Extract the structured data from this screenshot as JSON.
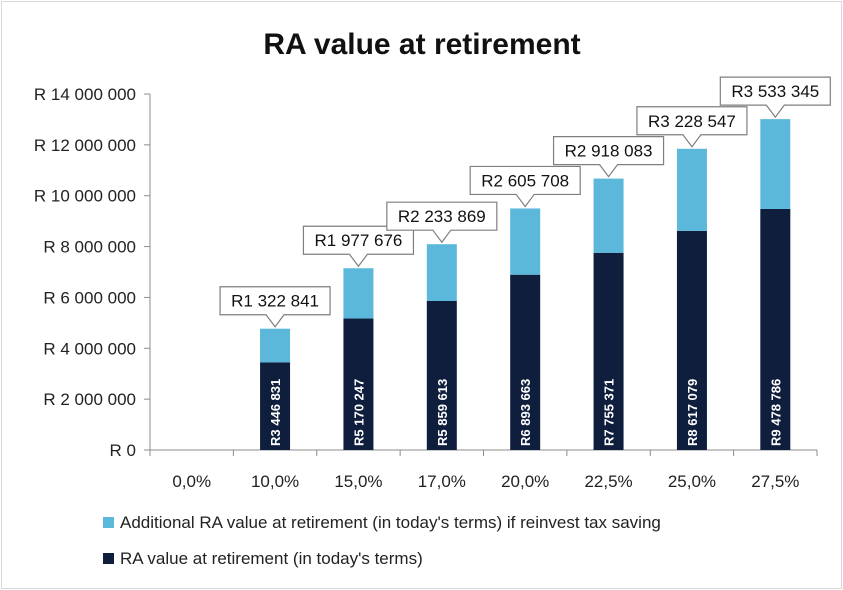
{
  "chart_data": {
    "type": "bar",
    "stacked": true,
    "title": "RA value at retirement",
    "categories": [
      "0,0%",
      "10,0%",
      "15,0%",
      "17,0%",
      "20,0%",
      "22,5%",
      "25,0%",
      "27,5%"
    ],
    "series": [
      {
        "name": "RA value at retirement (in today's terms)",
        "color": "#0e1e3c",
        "values": [
          0,
          3446831,
          5170247,
          5859613,
          6893663,
          7755371,
          8617079,
          9478786
        ],
        "labels": [
          "",
          "R3 446 831",
          "R5 170 247",
          "R5 859 613",
          "R6 893 663",
          "R7 755 371",
          "R8 617 079",
          "R9 478 786"
        ]
      },
      {
        "name": "Additional RA value at retirement (in today's terms) if reinvest tax saving",
        "color": "#5bb8da",
        "values": [
          0,
          1322841,
          1977676,
          2233869,
          2605708,
          2918083,
          3228547,
          3533345
        ],
        "labels": [
          "",
          "R1 322 841",
          "R1 977 676",
          "R2 233 869",
          "R2 605 708",
          "R2 918 083",
          "R3 228 547",
          "R3 533 345"
        ]
      }
    ],
    "ylim": [
      0,
      14000000
    ],
    "yticks": [
      "R 0",
      "R 2 000 000",
      "R 4 000 000",
      "R 6 000 000",
      "R 8 000 000",
      "R 10 000 000",
      "R 12 000 000",
      "R 14 000 000"
    ],
    "ytick_values": [
      0,
      2000000,
      4000000,
      6000000,
      8000000,
      10000000,
      12000000,
      14000000
    ],
    "grid": false,
    "legend_position": "bottom",
    "legend_order": [
      1,
      0
    ]
  }
}
